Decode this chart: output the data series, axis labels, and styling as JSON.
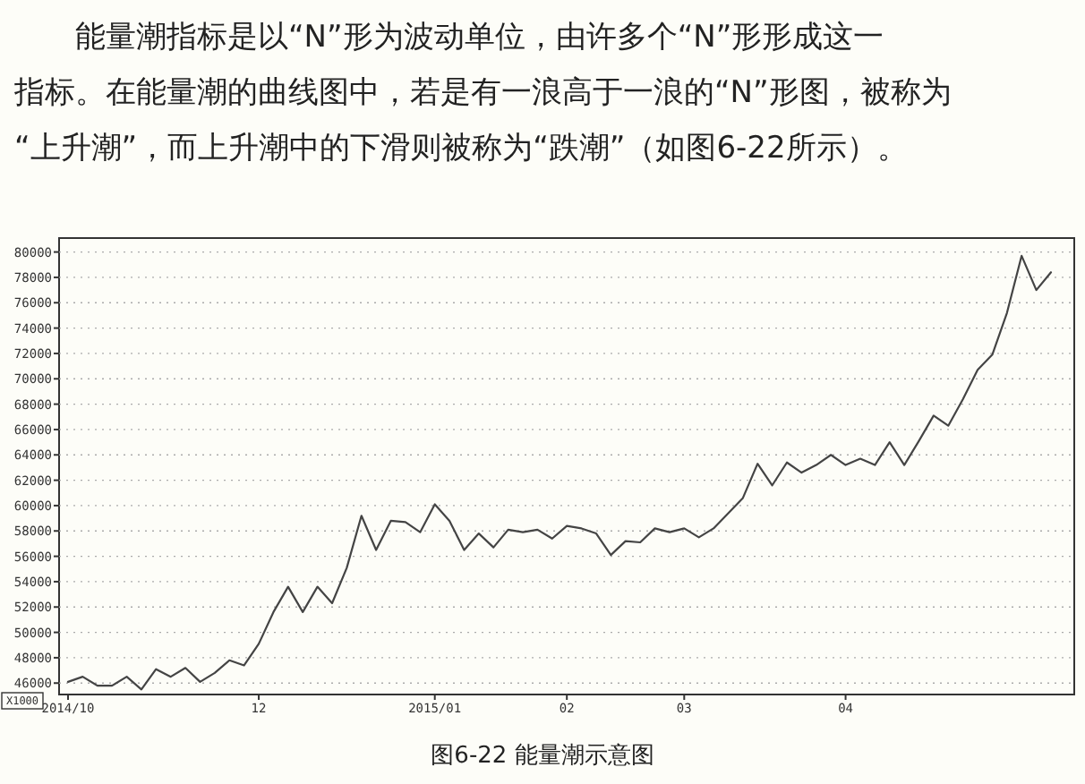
{
  "chart_data": {
    "type": "line",
    "title": "图6-22   能量潮示意图",
    "annotations": [
      "能量潮指标是以“N”形为波动单位，由许多个“N”形形成这一",
      "指标。在能量潮的曲线图中，若是有一浪高于一浪的“N”形图，被称为",
      "“上升潮”，而上升潮中的下滑则被称为“跌潮”（如图6-22所示）。"
    ],
    "ylabel": "X1000",
    "categories": [
      "2014/10",
      null,
      null,
      null,
      null,
      null,
      null,
      null,
      null,
      null,
      null,
      null,
      null,
      "12",
      null,
      null,
      null,
      null,
      null,
      null,
      null,
      null,
      null,
      null,
      null,
      "2015/01",
      null,
      null,
      null,
      null,
      null,
      null,
      null,
      null,
      "02",
      null,
      null,
      null,
      null,
      null,
      null,
      null,
      "03",
      null,
      null,
      null,
      null,
      null,
      null,
      null,
      null,
      null,
      null,
      "04",
      null,
      null,
      null,
      null,
      null,
      null,
      null,
      null,
      null,
      null,
      null,
      null,
      null,
      null
    ],
    "values": [
      46100,
      46500,
      45800,
      45800,
      46500,
      45500,
      47100,
      46500,
      47200,
      46100,
      46800,
      47800,
      47400,
      49100,
      51600,
      53600,
      51600,
      53600,
      52300,
      55100,
      59200,
      56500,
      58800,
      58700,
      57900,
      60100,
      58800,
      56500,
      57800,
      56700,
      58100,
      57900,
      58100,
      57400,
      58400,
      58200,
      57800,
      56100,
      57200,
      57100,
      58200,
      57900,
      58200,
      57500,
      58200,
      59400,
      60600,
      63300,
      61600,
      63400,
      62600,
      63200,
      64000,
      63200,
      63700,
      63200,
      65000,
      63200,
      65100,
      67100,
      66300,
      68400,
      70700,
      71900,
      75200,
      79700,
      77000,
      78400
    ],
    "color": "#444444",
    "ylim": [
      45100,
      81100
    ],
    "yticks": [
      46000,
      48000,
      50000,
      52000,
      54000,
      56000,
      58000,
      60000,
      62000,
      64000,
      66000,
      68000,
      70000,
      72000,
      74000,
      76000,
      78000,
      80000
    ],
    "grid": "y",
    "marker": "none",
    "line_style": "solid"
  }
}
